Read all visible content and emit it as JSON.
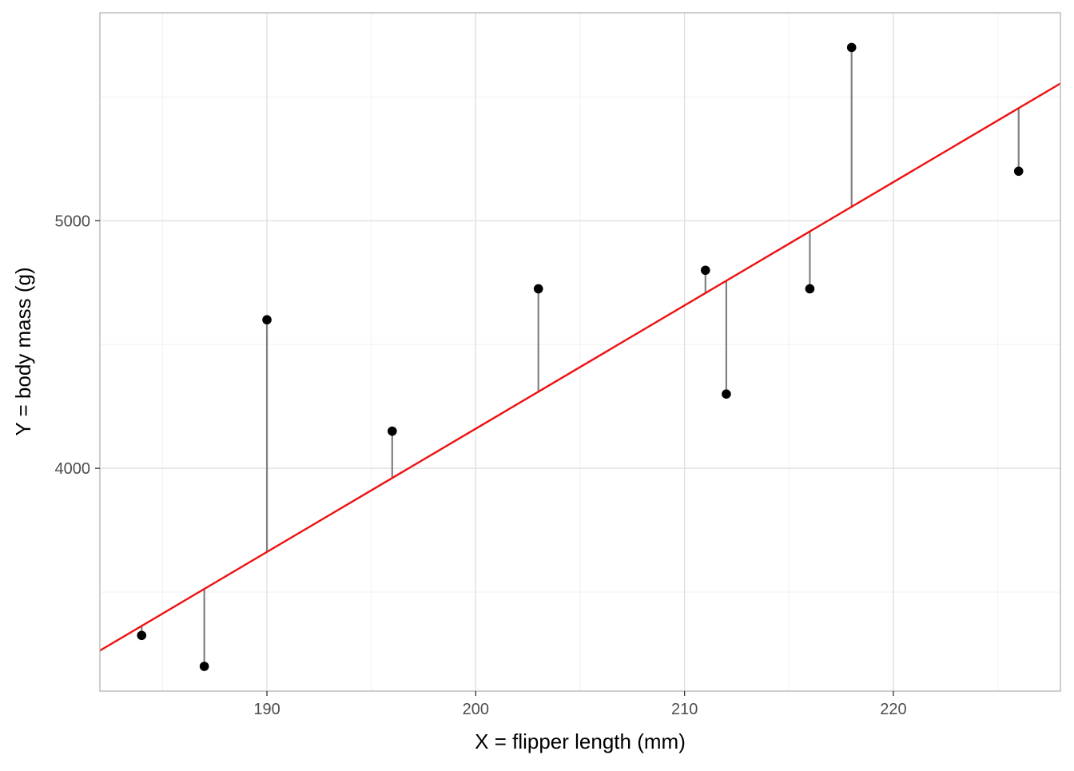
{
  "chart_data": {
    "type": "scatter",
    "title": "",
    "xlabel": "X = flipper length (mm)",
    "ylabel": "Y = body mass (g)",
    "xlim": [
      182,
      228
    ],
    "ylim": [
      3100,
      5840
    ],
    "x_ticks": [
      190,
      200,
      210,
      220
    ],
    "x_tick_labels": [
      "190",
      "200",
      "210",
      "220"
    ],
    "x_minor_ticks": [
      185,
      195,
      205,
      215,
      225
    ],
    "y_ticks": [
      4000,
      5000
    ],
    "y_tick_labels": [
      "4000",
      "5000"
    ],
    "y_minor_ticks": [
      3500,
      4500,
      5500
    ],
    "grid": true,
    "points": [
      {
        "x": 184,
        "y": 3325
      },
      {
        "x": 187,
        "y": 3200
      },
      {
        "x": 190,
        "y": 4600
      },
      {
        "x": 196,
        "y": 4150
      },
      {
        "x": 203,
        "y": 4725
      },
      {
        "x": 211,
        "y": 4800
      },
      {
        "x": 212,
        "y": 4300
      },
      {
        "x": 216,
        "y": 4725
      },
      {
        "x": 218,
        "y": 5700
      },
      {
        "x": 226,
        "y": 5200
      }
    ],
    "fit_line": {
      "slope": 49.8,
      "intercept": -5800
    },
    "colors": {
      "points": "#000000",
      "fit_line": "#ee1111",
      "residuals": "#808080"
    }
  }
}
